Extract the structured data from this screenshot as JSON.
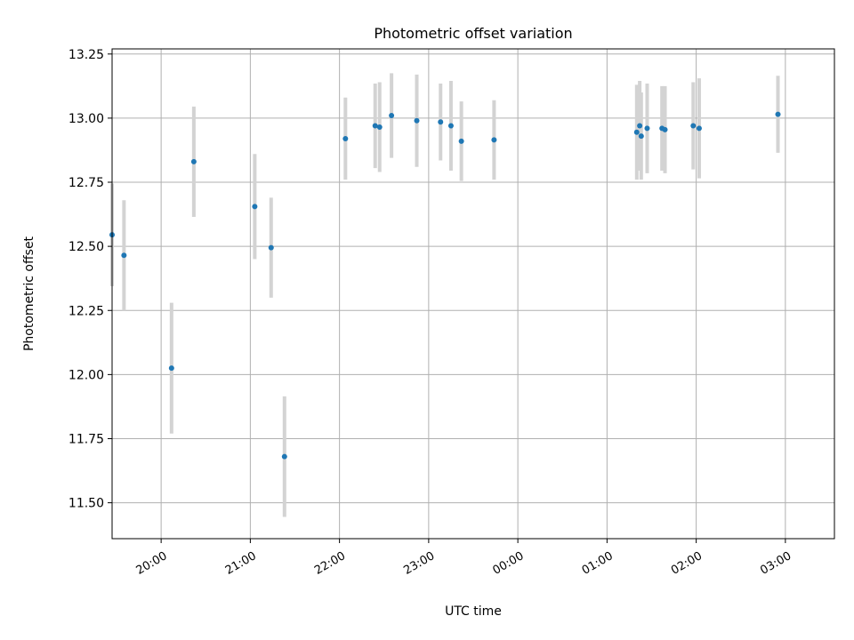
{
  "chart_data": {
    "type": "scatter",
    "title": "Photometric offset variation",
    "xlabel": "UTC time",
    "ylabel": "Photometric offset",
    "x_unit": "UTC time (HH:MM, crossing midnight)",
    "xlim": [
      "19:27",
      "03:33"
    ],
    "ylim": [
      11.36,
      13.27
    ],
    "x_ticks": [
      "20:00",
      "21:00",
      "22:00",
      "23:00",
      "00:00",
      "01:00",
      "02:00",
      "03:00"
    ],
    "y_ticks": [
      "11.50",
      "11.75",
      "12.00",
      "12.25",
      "12.50",
      "12.75",
      "13.00",
      "13.25"
    ],
    "grid": true,
    "legend": "none",
    "series": [
      {
        "error_bars": "symmetric vertical",
        "points": [
          {
            "x": "19:27",
            "y": 12.545,
            "err": 0.2
          },
          {
            "x": "19:35",
            "y": 12.465,
            "err": 0.215
          },
          {
            "x": "20:07",
            "y": 12.025,
            "err": 0.255
          },
          {
            "x": "20:22",
            "y": 12.83,
            "err": 0.215
          },
          {
            "x": "21:03",
            "y": 12.655,
            "err": 0.205
          },
          {
            "x": "21:14",
            "y": 12.495,
            "err": 0.195
          },
          {
            "x": "21:23",
            "y": 11.68,
            "err": 0.235
          },
          {
            "x": "22:04",
            "y": 12.92,
            "err": 0.16
          },
          {
            "x": "22:24",
            "y": 12.97,
            "err": 0.165
          },
          {
            "x": "22:27",
            "y": 12.965,
            "err": 0.175
          },
          {
            "x": "22:35",
            "y": 13.01,
            "err": 0.165
          },
          {
            "x": "22:52",
            "y": 12.99,
            "err": 0.18
          },
          {
            "x": "23:08",
            "y": 12.985,
            "err": 0.15
          },
          {
            "x": "23:15",
            "y": 12.97,
            "err": 0.175
          },
          {
            "x": "23:22",
            "y": 12.91,
            "err": 0.155
          },
          {
            "x": "23:44",
            "y": 12.915,
            "err": 0.155
          },
          {
            "x": "01:20",
            "y": 12.945,
            "err": 0.185
          },
          {
            "x": "01:22",
            "y": 12.97,
            "err": 0.175
          },
          {
            "x": "01:23",
            "y": 12.93,
            "err": 0.17
          },
          {
            "x": "01:27",
            "y": 12.96,
            "err": 0.175
          },
          {
            "x": "01:37",
            "y": 12.96,
            "err": 0.165
          },
          {
            "x": "01:39",
            "y": 12.955,
            "err": 0.17
          },
          {
            "x": "01:58",
            "y": 12.97,
            "err": 0.17
          },
          {
            "x": "02:02",
            "y": 12.96,
            "err": 0.195
          },
          {
            "x": "02:55",
            "y": 13.015,
            "err": 0.15
          }
        ]
      }
    ],
    "colors": {
      "point": "#1f77b4",
      "errorbar": "#d3d3d3",
      "grid": "#b0b0b0",
      "axes": "#000000"
    }
  }
}
